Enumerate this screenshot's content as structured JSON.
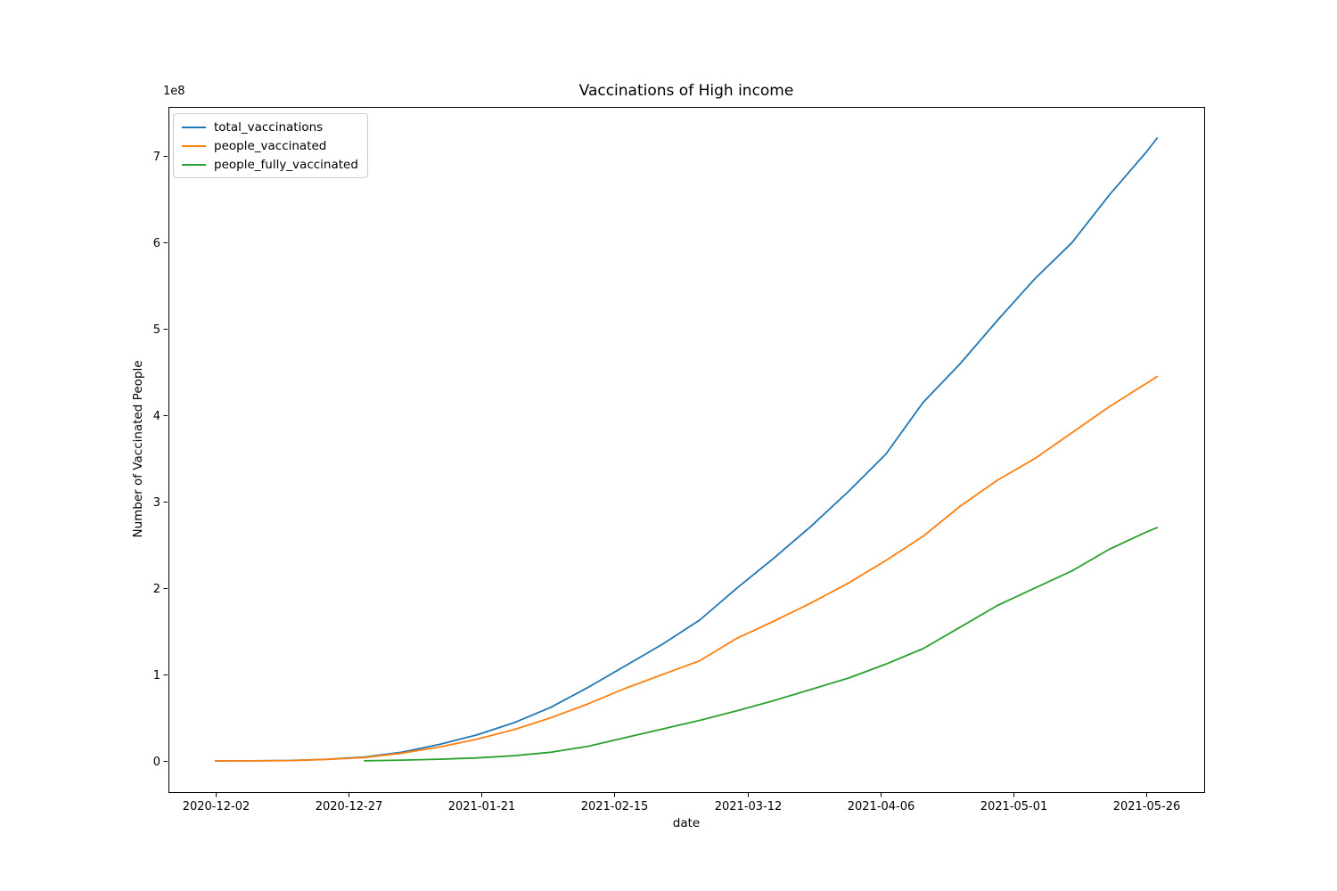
{
  "figure": {
    "background_color": "#ffffff",
    "axes_edge_color": "#000000",
    "tick_color": "#000000"
  },
  "chart_data": {
    "type": "line",
    "title": "Vaccinations of High income",
    "xlabel": "date",
    "ylabel": "Number of Vaccinated People",
    "y_offset_label": "1e8",
    "y_unit": "values are in units of 1e8 (100 million) people",
    "grid": false,
    "legend_position": "upper left",
    "x_tick_labels": [
      "2020-12-02",
      "2020-12-27",
      "2021-01-21",
      "2021-02-15",
      "2021-03-12",
      "2021-04-06",
      "2021-05-01",
      "2021-05-26"
    ],
    "y_tick_labels": [
      "0",
      "1",
      "2",
      "3",
      "4",
      "5",
      "6",
      "7"
    ],
    "ylim_1e8": [
      -0.3605,
      7.5705
    ],
    "x_data_range": [
      "2020-12-02",
      "2021-05-28"
    ],
    "x_margin_frac": 0.05,
    "dates": [
      "2020-12-02",
      "2020-12-09",
      "2020-12-16",
      "2020-12-23",
      "2020-12-30",
      "2021-01-06",
      "2021-01-13",
      "2021-01-20",
      "2021-01-27",
      "2021-02-03",
      "2021-02-10",
      "2021-02-17",
      "2021-02-24",
      "2021-03-03",
      "2021-03-10",
      "2021-03-17",
      "2021-03-24",
      "2021-03-31",
      "2021-04-07",
      "2021-04-14",
      "2021-04-21",
      "2021-04-28",
      "2021-05-05",
      "2021-05-12",
      "2021-05-19",
      "2021-05-26",
      "2021-05-28"
    ],
    "series": [
      {
        "name": "total_vaccinations",
        "color": "#1f77b4",
        "values_1e8": [
          0.0,
          0.002,
          0.006,
          0.02,
          0.045,
          0.1,
          0.19,
          0.3,
          0.44,
          0.62,
          0.85,
          1.1,
          1.35,
          1.63,
          2.0,
          2.35,
          2.72,
          3.12,
          3.55,
          4.15,
          4.6,
          5.1,
          5.58,
          6.0,
          6.55,
          7.05,
          7.21
        ]
      },
      {
        "name": "people_vaccinated",
        "color": "#ff7f0e",
        "values_1e8": [
          0.0,
          0.002,
          0.005,
          0.018,
          0.04,
          0.09,
          0.16,
          0.25,
          0.36,
          0.5,
          0.66,
          0.84,
          1.0,
          1.16,
          1.42,
          1.62,
          1.83,
          2.06,
          2.32,
          2.6,
          2.95,
          3.25,
          3.5,
          3.8,
          4.1,
          4.37,
          4.45
        ]
      },
      {
        "name": "people_fully_vaccinated",
        "color": "#2ca02c",
        "values_1e8": [
          null,
          null,
          null,
          null,
          0.002,
          0.01,
          0.02,
          0.035,
          0.06,
          0.1,
          0.17,
          0.27,
          0.37,
          0.47,
          0.58,
          0.7,
          0.83,
          0.96,
          1.12,
          1.3,
          1.55,
          1.8,
          2.0,
          2.2,
          2.45,
          2.65,
          2.7
        ]
      }
    ]
  }
}
